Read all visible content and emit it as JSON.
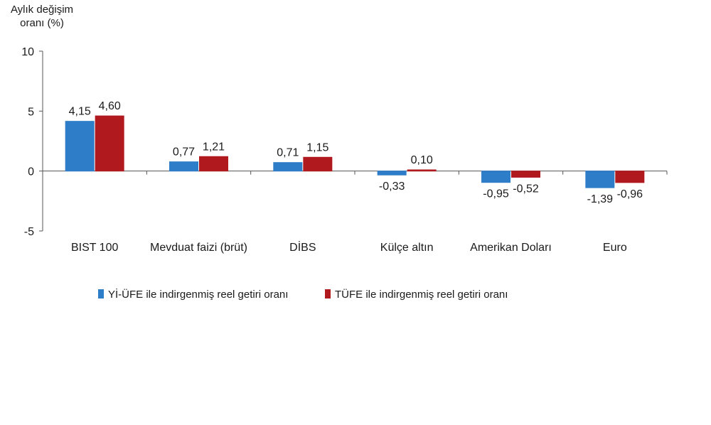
{
  "chart_data": {
    "type": "bar",
    "ylabel": [
      "Aylık değişim",
      "oranı (%)"
    ],
    "ylim": [
      -5,
      10
    ],
    "yticks": [
      "10",
      "5",
      "0",
      "-5"
    ],
    "ytick_values": [
      10,
      5,
      0,
      -5
    ],
    "categories": [
      "BIST 100",
      "Mevduat faizi (brüt)",
      "DİBS",
      "Külçe altın",
      "Amerikan Doları",
      "Euro"
    ],
    "series": [
      {
        "name": "Yİ-ÜFE ile indirgenmiş reel getiri oranı",
        "color": "#2e7dc8",
        "values": [
          4.15,
          0.77,
          0.71,
          -0.33,
          -0.95,
          -1.39
        ],
        "labels": [
          "4,15",
          "0,77",
          "0,71",
          "-0,33",
          "-0,95",
          "-1,39"
        ]
      },
      {
        "name": "TÜFE ile indirgenmiş reel getiri oranı",
        "color": "#b0191e",
        "values": [
          4.6,
          1.21,
          1.15,
          0.1,
          -0.52,
          -0.96
        ],
        "labels": [
          "4,60",
          "1,21",
          "1,15",
          "0,10",
          "-0,52",
          "-0,96"
        ]
      }
    ],
    "legend_position": "bottom",
    "grid": false
  }
}
